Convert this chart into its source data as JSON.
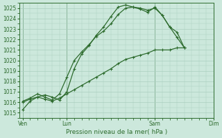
{
  "background_color": "#cce8dc",
  "grid_color": "#aacfbf",
  "line_color": "#2d6b2d",
  "xlabel": "Pression niveau de la mer( hPa )",
  "ylim_min": 1014.5,
  "ylim_max": 1025.5,
  "yticks": [
    1015,
    1016,
    1017,
    1018,
    1019,
    1020,
    1021,
    1022,
    1023,
    1024,
    1025
  ],
  "xtick_labels": [
    "Ven",
    "Lun",
    "Sam",
    "Dim"
  ],
  "xtick_positions": [
    0,
    6,
    18,
    26
  ],
  "vline_positions": [
    0,
    6,
    18,
    26
  ],
  "series": [
    [
      1015.3,
      1016.1,
      1016.5,
      1016.7,
      1016.5,
      1016.2,
      1017.0,
      1019.2,
      1020.6,
      1021.4,
      1022.4,
      1023.2,
      1024.2,
      1025.1,
      1025.3,
      1025.1,
      1024.9,
      1024.6,
      1025.1,
      1024.3,
      1023.2,
      1022.7,
      1021.2
    ],
    [
      1016.1,
      1016.4,
      1016.8,
      1016.5,
      1016.2,
      1016.8,
      1018.4,
      1020.0,
      1020.8,
      1021.5,
      1022.3,
      1022.8,
      1023.5,
      1024.4,
      1025.0,
      1025.1,
      1025.0,
      1024.8,
      1025.0,
      1024.3,
      1023.2,
      1022.2,
      1021.2
    ],
    [
      1016.0,
      1016.3,
      1016.5,
      1016.3,
      1016.1,
      1016.4,
      1016.8,
      1017.2,
      1017.6,
      1018.0,
      1018.4,
      1018.8,
      1019.2,
      1019.7,
      1020.1,
      1020.3,
      1020.5,
      1020.7,
      1021.0,
      1021.0,
      1021.0,
      1021.2,
      1021.2
    ]
  ],
  "figsize": [
    3.2,
    2.0
  ],
  "dpi": 100,
  "tick_fontsize": 5.5,
  "xlabel_fontsize": 6.5,
  "linewidth": 0.9,
  "markersize": 2.5,
  "marker": "+"
}
